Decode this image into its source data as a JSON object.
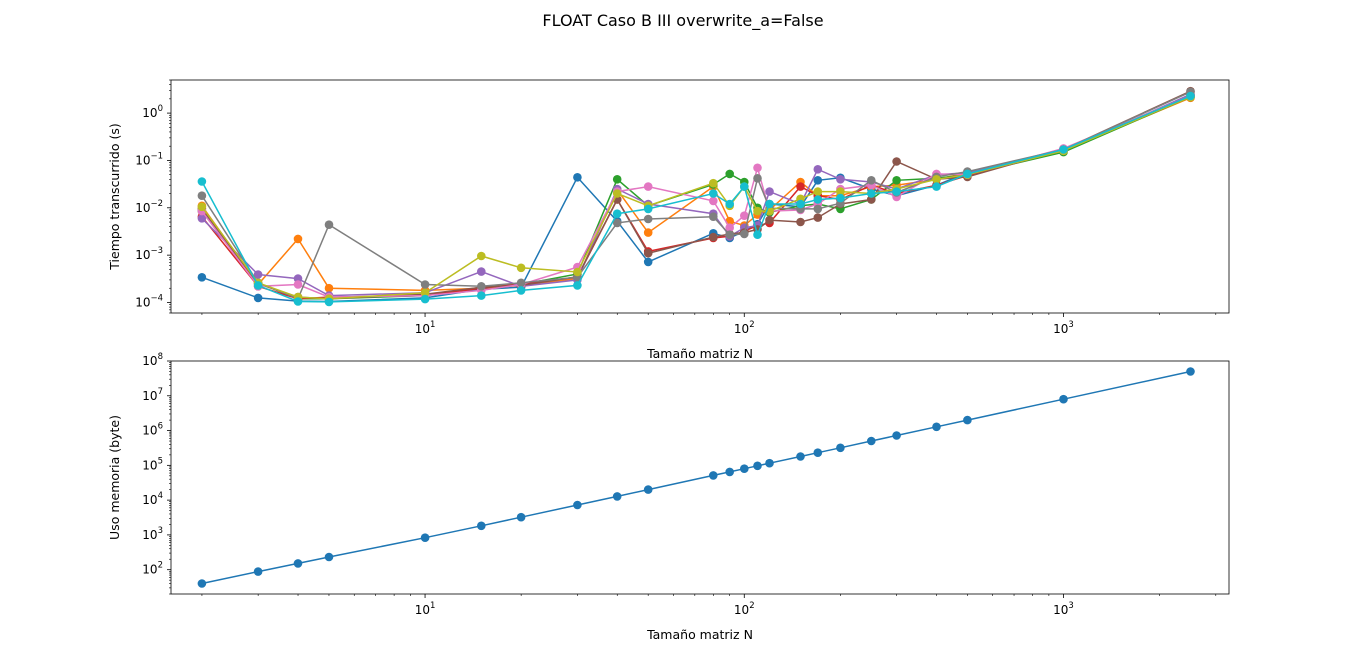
{
  "figure": {
    "suptitle": "FLOAT Caso B III overwrite_a=False"
  },
  "chart_data": [
    {
      "type": "line",
      "xscale": "log",
      "yscale": "log",
      "xlabel": "Tamaño matriz N",
      "ylabel": "Tiempo transcurrido (s)",
      "xlim": [
        1.6,
        3300
      ],
      "ylim": [
        6e-05,
        5
      ],
      "xticks": [
        {
          "value": 10,
          "base": "10",
          "exp": "1"
        },
        {
          "value": 100,
          "base": "10",
          "exp": "2"
        },
        {
          "value": 1000,
          "base": "10",
          "exp": "3"
        }
      ],
      "yticks": [
        {
          "value": 0.0001,
          "base": "10",
          "exp": "−4"
        },
        {
          "value": 0.001,
          "base": "10",
          "exp": "−3"
        },
        {
          "value": 0.01,
          "base": "10",
          "exp": "−2"
        },
        {
          "value": 0.1,
          "base": "10",
          "exp": "−1"
        },
        {
          "value": 1,
          "base": "10",
          "exp": "0"
        }
      ],
      "x": [
        2,
        3,
        4,
        5,
        10,
        15,
        20,
        30,
        40,
        50,
        80,
        90,
        100,
        110,
        120,
        150,
        170,
        200,
        250,
        300,
        400,
        500,
        1000,
        2500
      ],
      "series": [
        {
          "color": "#1f77b4",
          "values": [
            0.00034,
            0.000125,
            0.000107,
            0.000105,
            0.000125,
            0.00019,
            0.00021,
            0.044,
            0.0052,
            0.00072,
            0.0029,
            0.0023,
            0.0032,
            0.0045,
            0.012,
            0.0105,
            0.038,
            0.043,
            0.025,
            0.018,
            0.03,
            0.055,
            0.17,
            2.3
          ]
        },
        {
          "color": "#ff7f0e",
          "values": [
            0.011,
            0.00024,
            0.0022,
            0.0002,
            0.00018,
            0.0002,
            0.00023,
            0.00032,
            0.024,
            0.003,
            0.028,
            0.0052,
            0.0042,
            0.0072,
            0.009,
            0.035,
            0.018,
            0.018,
            0.028,
            0.03,
            0.04,
            0.055,
            0.16,
            2.1
          ]
        },
        {
          "color": "#2ca02c",
          "values": [
            0.0085,
            0.00026,
            0.00012,
            0.00012,
            0.00014,
            0.00021,
            0.00024,
            0.0004,
            0.04,
            0.011,
            0.031,
            0.052,
            0.035,
            0.01,
            0.008,
            0.011,
            0.012,
            0.0095,
            0.015,
            0.038,
            0.042,
            0.05,
            0.15,
            2.2
          ]
        },
        {
          "color": "#d62728",
          "values": [
            0.0065,
            0.00022,
            0.00012,
            0.00013,
            0.00014,
            0.0002,
            0.00025,
            0.00034,
            0.015,
            0.0012,
            0.0023,
            0.0025,
            0.0032,
            0.0042,
            0.0048,
            0.028,
            0.018,
            0.015,
            0.03,
            0.02,
            0.03,
            0.048,
            0.165,
            2.4
          ]
        },
        {
          "color": "#9467bd",
          "values": [
            0.006,
            0.00039,
            0.00032,
            0.00014,
            0.00016,
            0.00045,
            0.00022,
            0.0003,
            0.025,
            0.012,
            0.0075,
            0.0025,
            0.0038,
            0.0042,
            0.022,
            0.012,
            0.065,
            0.04,
            0.035,
            0.025,
            0.05,
            0.055,
            0.16,
            2.5
          ]
        },
        {
          "color": "#8c564b",
          "values": [
            0.0095,
            0.00025,
            0.00013,
            0.00012,
            0.00015,
            0.00021,
            0.00023,
            0.00035,
            0.015,
            0.0011,
            0.0024,
            0.0028,
            0.003,
            0.0035,
            0.0055,
            0.005,
            0.0062,
            0.012,
            0.015,
            0.095,
            0.04,
            0.045,
            0.17,
            2.9
          ]
        },
        {
          "color": "#e377c2",
          "values": [
            0.0085,
            0.00022,
            0.00024,
            0.00013,
            0.00014,
            0.00018,
            0.00024,
            0.00056,
            0.022,
            0.028,
            0.014,
            0.0038,
            0.0068,
            0.07,
            0.0085,
            0.009,
            0.012,
            0.025,
            0.03,
            0.017,
            0.052,
            0.05,
            0.18,
            2.3
          ]
        },
        {
          "color": "#7f7f7f",
          "values": [
            0.018,
            0.00026,
            0.00012,
            0.0044,
            0.00024,
            0.00022,
            0.00026,
            0.00034,
            0.0048,
            0.0058,
            0.0065,
            0.0027,
            0.0028,
            0.042,
            0.0098,
            0.0095,
            0.0095,
            0.0125,
            0.038,
            0.021,
            0.045,
            0.058,
            0.17,
            2.8
          ]
        },
        {
          "color": "#bcbd22",
          "values": [
            0.0105,
            0.00026,
            0.00013,
            0.00012,
            0.00016,
            0.00096,
            0.00054,
            0.00044,
            0.02,
            0.011,
            0.033,
            0.011,
            0.028,
            0.0085,
            0.0085,
            0.0155,
            0.022,
            0.022,
            0.02,
            0.025,
            0.04,
            0.05,
            0.16,
            2.2
          ]
        },
        {
          "color": "#17becf",
          "values": [
            0.036,
            0.00023,
            0.000105,
            0.000103,
            0.000118,
            0.00014,
            0.00018,
            0.00023,
            0.0075,
            0.0095,
            0.02,
            0.012,
            0.028,
            0.0027,
            0.012,
            0.012,
            0.015,
            0.016,
            0.02,
            0.022,
            0.028,
            0.052,
            0.17,
            2.3
          ]
        }
      ]
    },
    {
      "type": "line",
      "xscale": "log",
      "yscale": "log",
      "xlabel": "Tamaño matriz N",
      "ylabel": "Uso memoria (byte)",
      "xlim": [
        1.6,
        3300
      ],
      "ylim": [
        20,
        100000000
      ],
      "xticks": [
        {
          "value": 10,
          "base": "10",
          "exp": "1"
        },
        {
          "value": 100,
          "base": "10",
          "exp": "2"
        },
        {
          "value": 1000,
          "base": "10",
          "exp": "3"
        }
      ],
      "yticks": [
        {
          "value": 100,
          "base": "10",
          "exp": "2"
        },
        {
          "value": 1000,
          "base": "10",
          "exp": "3"
        },
        {
          "value": 10000,
          "base": "10",
          "exp": "4"
        },
        {
          "value": 100000,
          "base": "10",
          "exp": "5"
        },
        {
          "value": 1000000,
          "base": "10",
          "exp": "6"
        },
        {
          "value": 10000000,
          "base": "10",
          "exp": "7"
        },
        {
          "value": 100000000,
          "base": "10",
          "exp": "8"
        }
      ],
      "x": [
        2,
        3,
        4,
        5,
        10,
        15,
        20,
        30,
        40,
        50,
        80,
        90,
        100,
        110,
        120,
        150,
        170,
        200,
        250,
        300,
        400,
        500,
        1000,
        2500
      ],
      "series": [
        {
          "color": "#1f77b4",
          "values": [
            40,
            88,
            152,
            232,
            832,
            1832,
            3232,
            7232,
            12832,
            20032,
            51232,
            64832,
            80032,
            96832,
            115232,
            180032,
            231232,
            320032,
            500032,
            720032,
            1280032,
            2000032,
            8000032,
            50000032
          ]
        }
      ]
    }
  ]
}
